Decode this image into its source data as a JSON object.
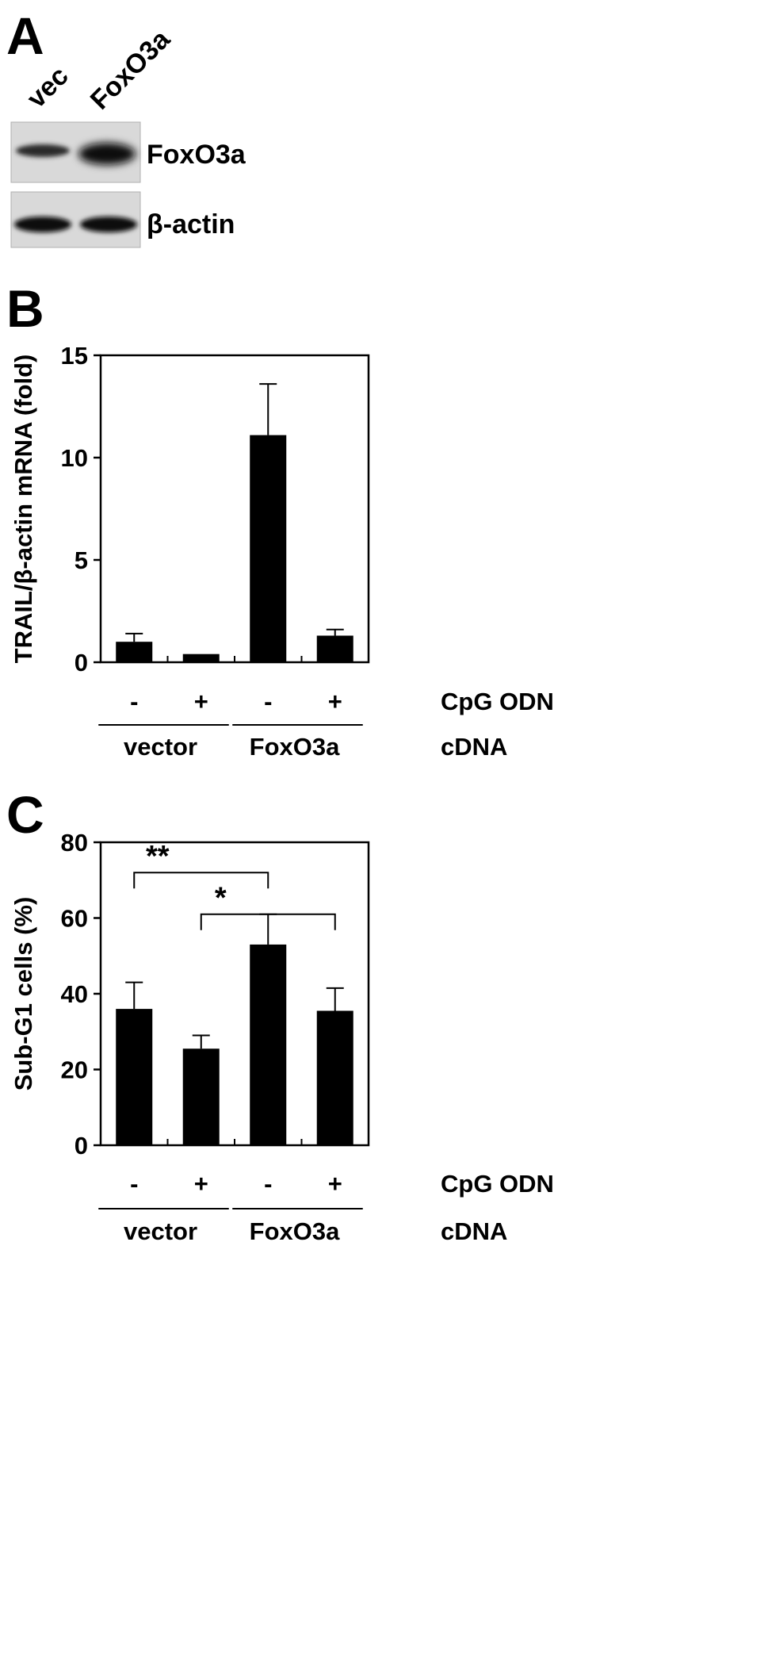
{
  "panels": {
    "a": "A",
    "b": "B",
    "c": "C"
  },
  "blot": {
    "lanes": [
      "vec",
      "FoxO3a"
    ],
    "bands": [
      "FoxO3a",
      "β-actin"
    ]
  },
  "chart_data": [
    {
      "type": "bar",
      "ylabel": "TRAIL/β-actin mRNA (fold)",
      "ylim": [
        0,
        15
      ],
      "yticks": [
        "0",
        "5",
        "10",
        "15"
      ],
      "categories": [
        "-",
        "+",
        "-",
        "+"
      ],
      "values": [
        1.0,
        0.4,
        11.1,
        1.3
      ],
      "errors": [
        0.4,
        0.0,
        2.5,
        0.3
      ],
      "row_labels": {
        "treatment": "CpG ODN",
        "transfection": "cDNA"
      },
      "groups": [
        "vector",
        "FoxO3a"
      ],
      "significance": []
    },
    {
      "type": "bar",
      "ylabel": "Sub-G1 cells (%)",
      "ylim": [
        0,
        80
      ],
      "yticks": [
        "0",
        "20",
        "40",
        "60",
        "80"
      ],
      "categories": [
        "-",
        "+",
        "-",
        "+"
      ],
      "values": [
        36,
        25.5,
        53,
        35.5
      ],
      "errors": [
        7,
        3.5,
        8,
        6
      ],
      "row_labels": {
        "treatment": "CpG ODN",
        "transfection": "cDNA"
      },
      "groups": [
        "vector",
        "FoxO3a"
      ],
      "significance": [
        {
          "from": 0,
          "to": 2,
          "label": "**",
          "y": 72
        },
        {
          "from": 1,
          "to": 3,
          "label": "*",
          "y": 61
        }
      ]
    }
  ]
}
